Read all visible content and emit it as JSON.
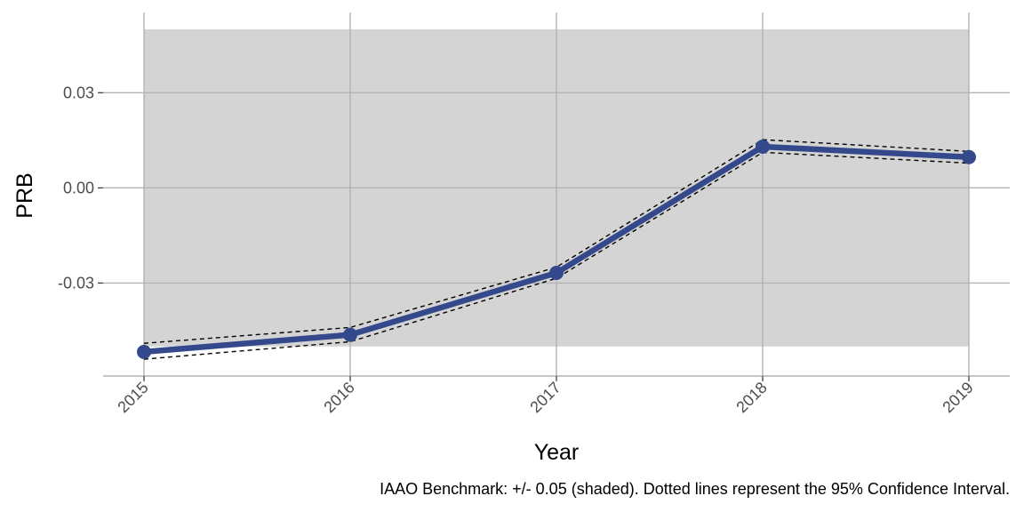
{
  "chart_data": {
    "type": "line",
    "title": "",
    "xlabel": "Year",
    "ylabel": "PRB",
    "caption": "IAAO Benchmark: +/- 0.05 (shaded). Dotted lines represent the 95% Confidence Interval.",
    "x": [
      "2015",
      "2016",
      "2017",
      "2018",
      "2019"
    ],
    "series": [
      {
        "values": [
          -0.0517,
          -0.0463,
          -0.0268,
          0.013,
          0.0097
        ],
        "ci_upper": [
          -0.049,
          -0.044,
          -0.025,
          0.0152,
          0.0115
        ],
        "ci_lower": [
          -0.054,
          -0.0485,
          -0.0285,
          0.0112,
          0.0078
        ]
      }
    ],
    "benchmark_band": [
      -0.05,
      0.05
    ],
    "ylim": [
      -0.0593,
      0.0553
    ],
    "yticks": [
      -0.03,
      0.0,
      0.03
    ],
    "ytick_labels": [
      "-0.03",
      "0.00",
      "0.03"
    ],
    "grid": true,
    "colors": {
      "line": "#34488c",
      "band": "#d4d4d4",
      "grid": "#b3b3b3",
      "ci": "#000000"
    }
  }
}
